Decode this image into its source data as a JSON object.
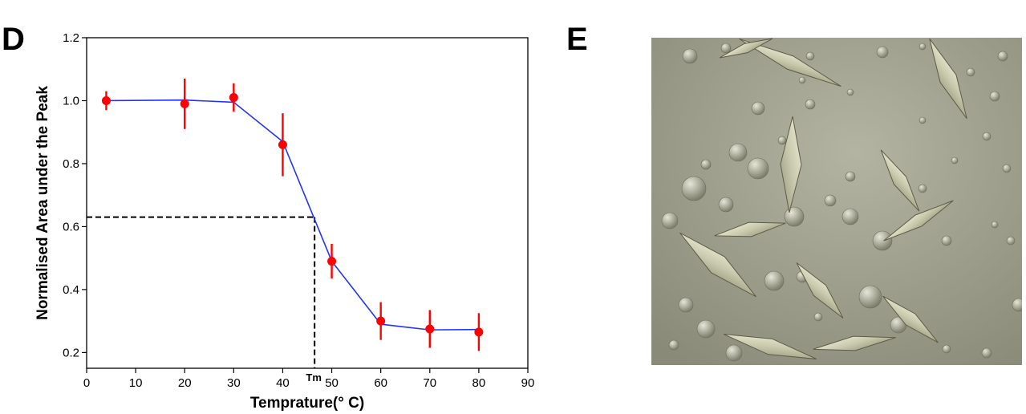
{
  "panels": {
    "left_letter": "D",
    "right_letter": "E"
  },
  "chart_data": {
    "type": "line",
    "title": "",
    "xlabel": "Temprature(° C)",
    "ylabel": "Normalised Area under the Peak",
    "xlim": [
      0,
      90
    ],
    "ylim": [
      0.15,
      1.2
    ],
    "xticks": [
      0,
      10,
      20,
      30,
      40,
      50,
      60,
      70,
      80,
      90
    ],
    "yticks": [
      0.2,
      0.4,
      0.6,
      0.8,
      1.0,
      1.2
    ],
    "ytick_labels": [
      "0.2",
      "0.4",
      "0.6",
      "0.8",
      "1.0",
      "1.2"
    ],
    "grid": false,
    "series": [
      {
        "color": "#ff0000",
        "x": [
          4,
          20,
          30,
          40,
          50,
          60,
          70,
          80
        ],
        "y": [
          1.0,
          0.99,
          1.01,
          0.86,
          0.49,
          0.3,
          0.275,
          0.265
        ],
        "error": [
          0.03,
          0.08,
          0.045,
          0.1,
          0.055,
          0.06,
          0.06,
          0.06
        ]
      }
    ],
    "fit_curve": {
      "color": "#2233ff",
      "x": [
        4,
        20,
        30,
        40,
        50,
        60,
        70,
        80
      ],
      "y": [
        1.0,
        1.002,
        0.995,
        0.87,
        0.49,
        0.29,
        0.272,
        0.273
      ]
    },
    "reference_line": {
      "y": 0.63,
      "x": 46.5,
      "label": "Tm",
      "style": "dashed"
    }
  },
  "photo": {
    "background": "#9c9c88",
    "crystal_color": "#d8d8c0"
  }
}
